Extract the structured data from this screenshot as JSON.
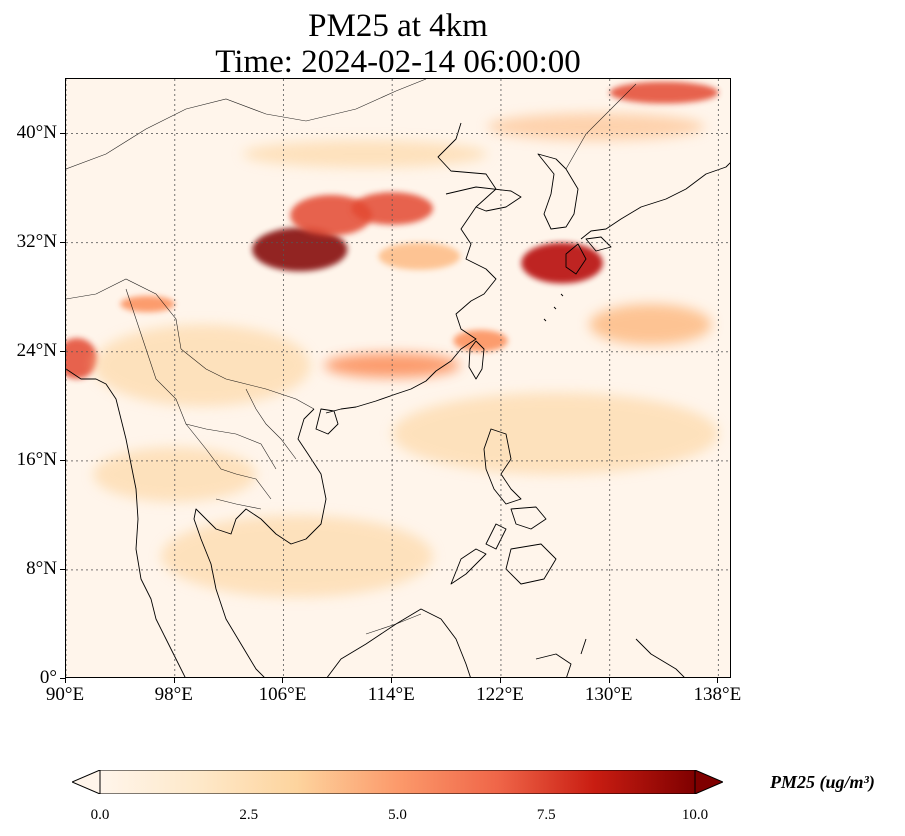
{
  "title": {
    "line1": "PM25 at 4km",
    "line2": "Time: 2024-02-14 06:00:00"
  },
  "map": {
    "projection": "PlateCarree",
    "lon_range": [
      90,
      139
    ],
    "lat_range": [
      0,
      44
    ],
    "lat_ticks": [
      {
        "value": 0,
        "label": "0°"
      },
      {
        "value": 8,
        "label": "8°N"
      },
      {
        "value": 16,
        "label": "16°N"
      },
      {
        "value": 24,
        "label": "24°N"
      },
      {
        "value": 32,
        "label": "32°N"
      },
      {
        "value": 40,
        "label": "40°N"
      }
    ],
    "lon_ticks": [
      {
        "value": 90,
        "label": "90°E"
      },
      {
        "value": 98,
        "label": "98°E"
      },
      {
        "value": 106,
        "label": "106°E"
      },
      {
        "value": 114,
        "label": "114°E"
      },
      {
        "value": 122,
        "label": "122°E"
      },
      {
        "value": 130,
        "label": "130°E"
      },
      {
        "value": 138,
        "label": "138°E"
      }
    ],
    "gridlines": true,
    "colormap": "OrRd"
  },
  "colorbar": {
    "label": "PM25 (ug/m³)",
    "min": 0.0,
    "max": 10.0,
    "extend": "both",
    "ticks": [
      "0.0",
      "2.5",
      "5.0",
      "7.5",
      "10.0"
    ],
    "colors": [
      "#fff5eb",
      "#fdd49e",
      "#fdbb84",
      "#fc8d59",
      "#e34a33",
      "#b30000",
      "#7f0000"
    ]
  },
  "plumes": [
    {
      "lon": 107.2,
      "lat": 31.5,
      "rx": 3.5,
      "ry": 1.6,
      "value": 10
    },
    {
      "lon": 109.5,
      "lat": 34.0,
      "rx": 3.0,
      "ry": 1.5,
      "value": 6
    },
    {
      "lon": 114.0,
      "lat": 34.5,
      "rx": 3.0,
      "ry": 1.2,
      "value": 6
    },
    {
      "lon": 116.0,
      "lat": 31.0,
      "rx": 3.0,
      "ry": 1.0,
      "value": 4
    },
    {
      "lon": 126.5,
      "lat": 30.5,
      "rx": 3.0,
      "ry": 1.5,
      "value": 8
    },
    {
      "lon": 133.0,
      "lat": 26.0,
      "rx": 4.5,
      "ry": 1.5,
      "value": 4
    },
    {
      "lon": 114.0,
      "lat": 23.0,
      "rx": 5.0,
      "ry": 0.9,
      "value": 5
    },
    {
      "lon": 120.5,
      "lat": 24.8,
      "rx": 2.0,
      "ry": 0.8,
      "value": 5
    },
    {
      "lon": 134.0,
      "lat": 43.0,
      "rx": 4.0,
      "ry": 0.8,
      "value": 6
    },
    {
      "lon": 90.8,
      "lat": 23.5,
      "rx": 1.5,
      "ry": 1.5,
      "value": 7
    },
    {
      "lon": 96.0,
      "lat": 27.5,
      "rx": 2.0,
      "ry": 0.6,
      "value": 5
    },
    {
      "lon": 129.0,
      "lat": 40.5,
      "rx": 8.0,
      "ry": 1.0,
      "value": 3
    },
    {
      "lon": 112.0,
      "lat": 38.5,
      "rx": 9.0,
      "ry": 1.0,
      "value": 2
    },
    {
      "lon": 100.0,
      "lat": 23.0,
      "rx": 8.0,
      "ry": 3.0,
      "value": 1.5
    },
    {
      "lon": 98.0,
      "lat": 15.0,
      "rx": 6.0,
      "ry": 2.0,
      "value": 1.5
    },
    {
      "lon": 107.0,
      "lat": 9.0,
      "rx": 10.0,
      "ry": 3.0,
      "value": 1.2
    },
    {
      "lon": 126.0,
      "lat": 18.0,
      "rx": 12.0,
      "ry": 3.0,
      "value": 1.5
    }
  ]
}
